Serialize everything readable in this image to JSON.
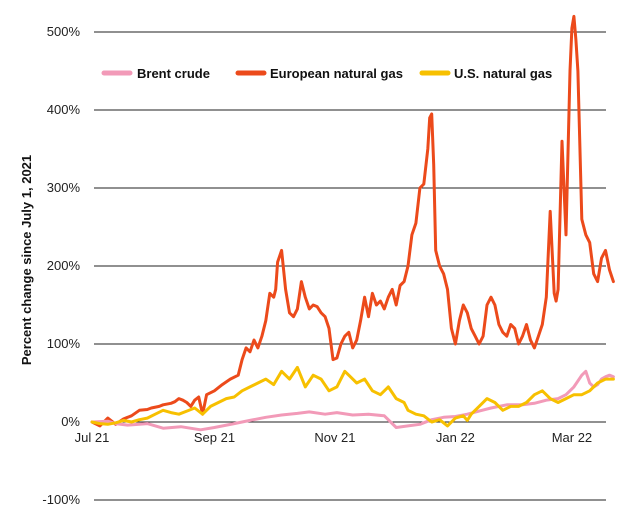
{
  "chart_data": {
    "type": "line",
    "title": "",
    "xlabel": "",
    "ylabel": "Percent change since July 1, 2021",
    "ylim": [
      -100,
      520
    ],
    "xlim": [
      0,
      264
    ],
    "y_ticks": [
      {
        "value": -100,
        "label": "-100%"
      },
      {
        "value": 0,
        "label": "0%"
      },
      {
        "value": 100,
        "label": "100%"
      },
      {
        "value": 200,
        "label": "200%"
      },
      {
        "value": 300,
        "label": "300%"
      },
      {
        "value": 400,
        "label": "400%"
      },
      {
        "value": 500,
        "label": "500%"
      }
    ],
    "x_ticks": [
      {
        "value": 0,
        "label": "Jul 21"
      },
      {
        "value": 62,
        "label": "Sep 21"
      },
      {
        "value": 123,
        "label": "Nov 21"
      },
      {
        "value": 184,
        "label": "Jan 22"
      },
      {
        "value": 243,
        "label": "Mar 22"
      }
    ],
    "grid": "horizontal",
    "legend_position": "top",
    "series": [
      {
        "name": "Brent crude",
        "color": "#f29ab8",
        "x": [
          0,
          8,
          12,
          18,
          24,
          28,
          36,
          45,
          55,
          62,
          72,
          80,
          88,
          96,
          104,
          110,
          118,
          124,
          132,
          140,
          148,
          154,
          160,
          166,
          172,
          178,
          184,
          190,
          196,
          202,
          210,
          218,
          224,
          230,
          236,
          240,
          244,
          248,
          250,
          252,
          254,
          256,
          258,
          260,
          262,
          264
        ],
        "y": [
          0,
          1,
          -2,
          -4,
          -3,
          -2,
          -8,
          -6,
          -10,
          -7,
          -2,
          2,
          6,
          9,
          11,
          13,
          10,
          12,
          9,
          10,
          8,
          -7,
          -5,
          -3,
          3,
          6,
          7,
          10,
          14,
          18,
          22,
          22,
          24,
          28,
          30,
          35,
          45,
          60,
          65,
          50,
          45,
          48,
          55,
          58,
          60,
          58
        ]
      },
      {
        "name": "European natural gas",
        "color": "#ec4a1b",
        "x": [
          0,
          4,
          8,
          12,
          16,
          20,
          24,
          28,
          30,
          34,
          36,
          40,
          42,
          44,
          46,
          48,
          50,
          52,
          54,
          56,
          58,
          62,
          66,
          70,
          74,
          76,
          78,
          80,
          82,
          84,
          86,
          88,
          90,
          92,
          93,
          94,
          96,
          98,
          100,
          102,
          104,
          106,
          108,
          110,
          112,
          114,
          116,
          118,
          120,
          122,
          124,
          126,
          128,
          130,
          132,
          134,
          136,
          138,
          140,
          142,
          144,
          146,
          148,
          150,
          152,
          154,
          156,
          158,
          160,
          162,
          164,
          166,
          168,
          170,
          171,
          172,
          173,
          174,
          176,
          178,
          180,
          182,
          184,
          186,
          188,
          190,
          192,
          194,
          196,
          198,
          200,
          202,
          204,
          206,
          208,
          210,
          212,
          214,
          216,
          218,
          220,
          222,
          224,
          226,
          228,
          230,
          232,
          234,
          235,
          236,
          238,
          240,
          242,
          243,
          244,
          245,
          246,
          248,
          250,
          252,
          254,
          256,
          258,
          260,
          262,
          264
        ],
        "y": [
          0,
          -5,
          5,
          -3,
          4,
          8,
          15,
          16,
          18,
          20,
          22,
          24,
          26,
          30,
          28,
          25,
          20,
          28,
          32,
          10,
          35,
          40,
          48,
          55,
          60,
          80,
          95,
          90,
          105,
          95,
          110,
          130,
          165,
          160,
          170,
          205,
          220,
          170,
          140,
          135,
          145,
          180,
          160,
          145,
          150,
          148,
          140,
          135,
          120,
          80,
          82,
          100,
          110,
          115,
          95,
          105,
          130,
          160,
          135,
          165,
          150,
          155,
          145,
          160,
          170,
          150,
          175,
          180,
          200,
          240,
          255,
          300,
          305,
          350,
          390,
          395,
          330,
          220,
          200,
          190,
          170,
          120,
          100,
          130,
          150,
          140,
          120,
          110,
          100,
          110,
          150,
          160,
          150,
          125,
          115,
          110,
          125,
          120,
          100,
          110,
          125,
          105,
          95,
          110,
          125,
          160,
          270,
          165,
          155,
          170,
          360,
          240,
          450,
          505,
          520,
          490,
          450,
          260,
          240,
          230,
          190,
          180,
          210,
          220,
          195,
          180
        ]
      },
      {
        "name": "U.S. natural gas",
        "color": "#f7c000",
        "x": [
          0,
          4,
          8,
          12,
          16,
          20,
          24,
          28,
          32,
          36,
          40,
          44,
          48,
          52,
          56,
          60,
          64,
          68,
          72,
          76,
          80,
          84,
          88,
          92,
          96,
          100,
          104,
          108,
          112,
          116,
          120,
          124,
          128,
          130,
          134,
          138,
          142,
          146,
          150,
          154,
          158,
          160,
          164,
          168,
          172,
          176,
          180,
          184,
          188,
          190,
          192,
          196,
          200,
          204,
          208,
          212,
          216,
          220,
          224,
          228,
          232,
          236,
          240,
          244,
          248,
          252,
          256,
          260,
          264
        ],
        "y": [
          0,
          -2,
          -3,
          -1,
          2,
          0,
          3,
          5,
          10,
          15,
          12,
          10,
          14,
          18,
          10,
          20,
          25,
          30,
          32,
          40,
          45,
          50,
          55,
          48,
          65,
          55,
          70,
          45,
          60,
          55,
          40,
          45,
          65,
          60,
          50,
          55,
          40,
          35,
          45,
          30,
          25,
          15,
          10,
          8,
          0,
          3,
          -5,
          5,
          8,
          2,
          10,
          20,
          30,
          25,
          15,
          20,
          20,
          25,
          35,
          40,
          30,
          25,
          30,
          35,
          35,
          40,
          50,
          55,
          55
        ]
      }
    ]
  }
}
